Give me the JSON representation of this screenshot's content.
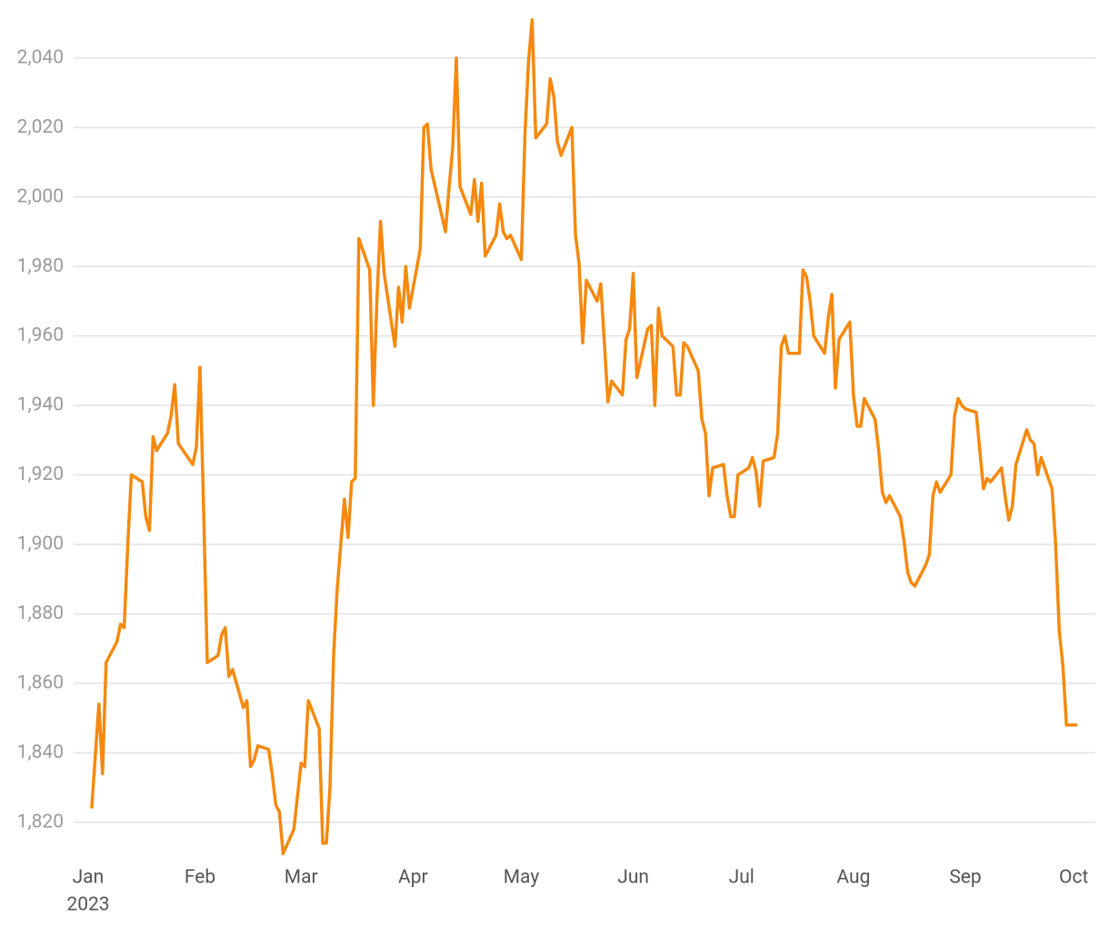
{
  "chart_data": {
    "type": "line",
    "x": [
      1,
      2,
      3,
      4,
      5,
      8,
      9,
      10,
      11,
      12,
      15,
      16,
      17,
      18,
      19,
      22,
      23,
      24,
      25,
      29,
      30,
      31,
      32,
      33,
      36,
      37,
      38,
      39,
      40,
      43,
      44,
      45,
      46,
      47,
      50,
      51,
      52,
      53,
      54,
      57,
      59,
      60,
      61,
      64,
      65,
      66,
      67,
      68,
      69,
      71,
      72,
      73,
      74,
      75,
      78,
      79,
      80,
      81,
      82,
      85,
      86,
      87,
      88,
      89,
      92,
      93,
      94,
      95,
      99,
      100,
      101,
      102,
      103,
      106,
      107,
      108,
      109,
      110,
      113,
      114,
      115,
      116,
      117,
      120,
      121,
      122,
      123,
      124,
      127,
      128,
      129,
      130,
      131,
      134,
      135,
      136,
      137,
      138,
      141,
      142,
      144,
      145,
      148,
      149,
      150,
      151,
      152,
      155,
      156,
      157,
      158,
      159,
      162,
      163,
      164,
      165,
      166,
      169,
      170,
      171,
      172,
      173,
      176,
      177,
      178,
      179,
      180,
      183,
      184,
      185,
      186,
      187,
      190,
      191,
      192,
      193,
      194,
      197,
      198,
      199,
      200,
      201,
      204,
      205,
      206,
      207,
      208,
      211,
      212,
      213,
      214,
      215,
      218,
      219,
      220,
      221,
      222,
      225,
      226,
      227,
      228,
      229,
      232,
      233,
      234,
      235,
      236,
      239,
      240,
      241,
      242,
      243,
      246,
      247,
      248,
      249,
      250,
      253,
      254,
      255,
      256,
      257,
      260,
      261,
      262,
      263,
      264,
      267,
      268,
      269,
      270,
      271,
      274
    ],
    "series": [
      {
        "color": "#f5890f",
        "values": [
          1824,
          1839,
          1854,
          1834,
          1866,
          1872,
          1877,
          1876,
          1900,
          1920,
          1918,
          1908,
          1904,
          1931,
          1927,
          1932,
          1937,
          1946,
          1929,
          1923,
          1928,
          1951,
          1910,
          1866,
          1868,
          1874,
          1876,
          1862,
          1864,
          1853,
          1855,
          1836,
          1838,
          1842,
          1841,
          1834,
          1825,
          1823,
          1811,
          1818,
          1837,
          1836,
          1855,
          1847,
          1814,
          1814,
          1830,
          1868,
          1887,
          1913,
          1902,
          1918,
          1919,
          1988,
          1979,
          1940,
          1970,
          1993,
          1978,
          1957,
          1974,
          1964,
          1980,
          1968,
          1985,
          2020,
          2021,
          2008,
          1990,
          2003,
          2014,
          2040,
          2003,
          1995,
          2005,
          1993,
          2004,
          1983,
          1989,
          1998,
          1990,
          1988,
          1989,
          1982,
          2018,
          2039,
          2051,
          2017,
          2021,
          2034,
          2029,
          2016,
          2012,
          2020,
          1989,
          1981,
          1958,
          1976,
          1970,
          1975,
          1941,
          1947,
          1943,
          1959,
          1962,
          1978,
          1948,
          1962,
          1963,
          1940,
          1968,
          1960,
          1957,
          1943,
          1943,
          1958,
          1957,
          1950,
          1936,
          1932,
          1914,
          1922,
          1923,
          1914,
          1908,
          1908,
          1920,
          1922,
          1925,
          1921,
          1911,
          1924,
          1925,
          1932,
          1957,
          1960,
          1955,
          1955,
          1979,
          1977,
          1970,
          1960,
          1955,
          1965,
          1972,
          1945,
          1959,
          1964,
          1943,
          1934,
          1934,
          1942,
          1936,
          1927,
          1915,
          1912,
          1914,
          1908,
          1901,
          1892,
          1889,
          1888,
          1894,
          1897,
          1914,
          1918,
          1915,
          1920,
          1937,
          1942,
          1940,
          1939,
          1938,
          1927,
          1916,
          1919,
          1918,
          1922,
          1914,
          1907,
          1911,
          1923,
          1933,
          1930,
          1929,
          1920,
          1925,
          1916,
          1900,
          1875,
          1865,
          1848,
          1848
        ]
      }
    ],
    "xlim": [
      -4,
      279
    ],
    "xticks": [
      {
        "value": 0,
        "label": "Jan"
      },
      {
        "value": 31,
        "label": "Feb"
      },
      {
        "value": 59,
        "label": "Mar"
      },
      {
        "value": 90,
        "label": "Apr"
      },
      {
        "value": 120,
        "label": "May"
      },
      {
        "value": 151,
        "label": "Jun"
      },
      {
        "value": 181,
        "label": "Jul"
      },
      {
        "value": 212,
        "label": "Aug"
      },
      {
        "value": 243,
        "label": "Sep"
      },
      {
        "value": 273,
        "label": "Oct"
      }
    ],
    "xtick_sublabel": "2023",
    "ylim": [
      1810,
      2052
    ],
    "yticks": [
      {
        "value": 1820,
        "label": "1,820"
      },
      {
        "value": 1840,
        "label": "1,840"
      },
      {
        "value": 1860,
        "label": "1,860"
      },
      {
        "value": 1880,
        "label": "1,880"
      },
      {
        "value": 1900,
        "label": "1,900"
      },
      {
        "value": 1920,
        "label": "1,920"
      },
      {
        "value": 1940,
        "label": "1,940"
      },
      {
        "value": 1960,
        "label": "1,960"
      },
      {
        "value": 1980,
        "label": "1,980"
      },
      {
        "value": 2000,
        "label": "2,000"
      },
      {
        "value": 2020,
        "label": "2,020"
      },
      {
        "value": 2040,
        "label": "2,040"
      }
    ],
    "grid": true
  }
}
